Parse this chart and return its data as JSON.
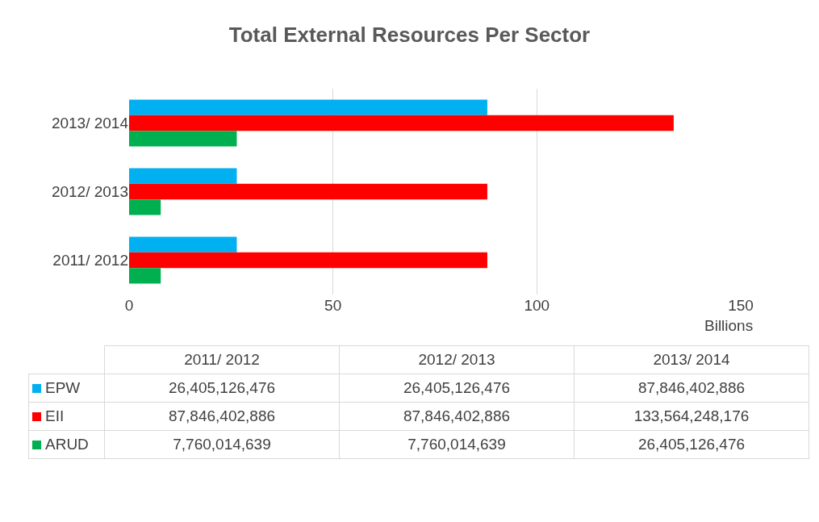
{
  "chart_data": {
    "type": "bar",
    "orientation": "horizontal",
    "title": "Total External Resources Per Sector",
    "xlabel": "Billions",
    "categories": [
      "2013/ 2014",
      "2012/ 2013",
      "2011/ 2012"
    ],
    "series": [
      {
        "name": "EPW",
        "color": "#00b0f0",
        "values": [
          87.85,
          26.41,
          26.41
        ]
      },
      {
        "name": "EII",
        "color": "#ff0000",
        "values": [
          133.56,
          87.85,
          87.85
        ]
      },
      {
        "name": "ARUD",
        "color": "#00b050",
        "values": [
          26.41,
          7.76,
          7.76
        ]
      }
    ],
    "xlim": [
      0,
      150
    ],
    "xticks": [
      0,
      50,
      100,
      150
    ],
    "grid": "x",
    "legend": "bottom",
    "annotations": [
      "26,405,126,476",
      "26,405,126,476",
      "87,846,402,886",
      "87,846,402,886",
      "87,846,402,886",
      "133,564,248,176",
      "7,760,014,639",
      "7,760,014,639",
      "26,405,126,476"
    ]
  }
}
